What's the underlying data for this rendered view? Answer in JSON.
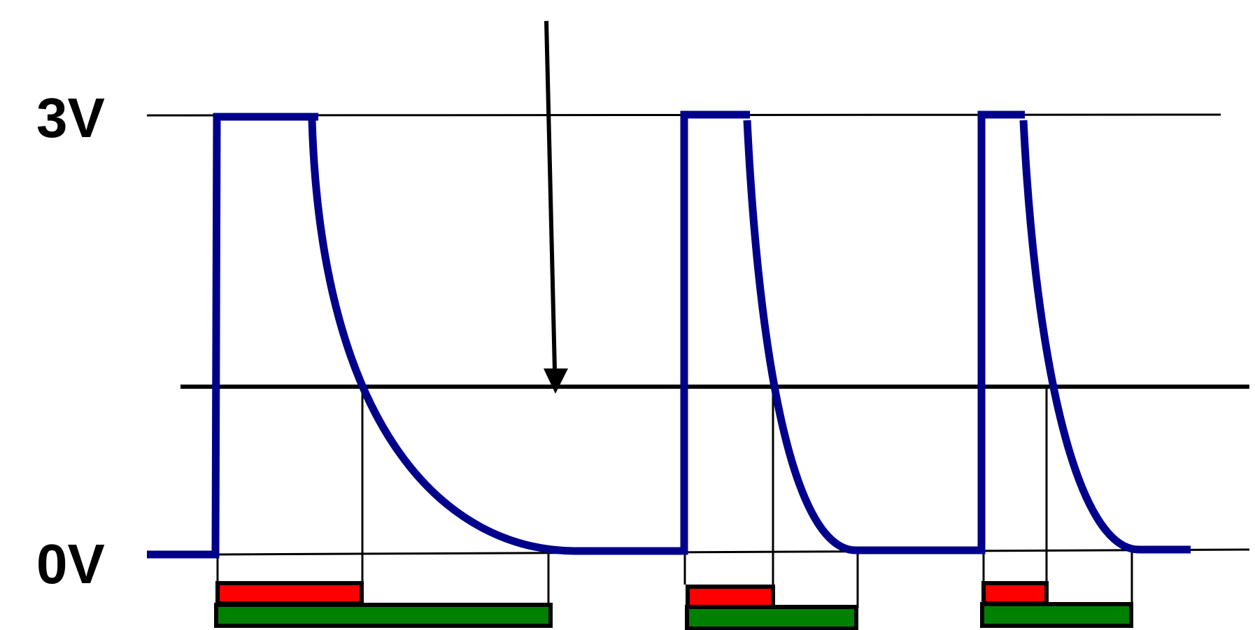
{
  "labels": {
    "top_voltage": "3V",
    "bottom_voltage": "0V"
  },
  "colors": {
    "signal": "#00008B",
    "reference_line": "#000000",
    "short_bar": "#FF0000",
    "long_bar": "#008000",
    "bar_outline": "#000000"
  }
}
